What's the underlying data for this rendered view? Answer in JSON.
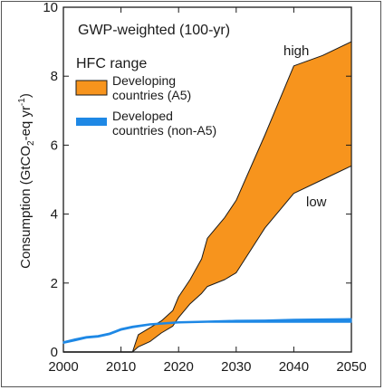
{
  "chart_data": {
    "type": "area",
    "title": "GWP-weighted (100-yr)",
    "ylabel_parts": [
      "Consumption (GtCO",
      "2",
      "-eq yr",
      "-1",
      ")"
    ],
    "xlim": [
      2000,
      2050
    ],
    "ylim": [
      0,
      10
    ],
    "x_ticks": [
      2000,
      2010,
      2020,
      2030,
      2040,
      2050
    ],
    "y_ticks": [
      0,
      2,
      4,
      6,
      8,
      10
    ],
    "legend": {
      "heading": "HFC range",
      "entries": [
        {
          "lines": [
            "Developing",
            "countries (A5)"
          ],
          "color": "#f7941d"
        },
        {
          "lines": [
            "Developed",
            "countries (non-A5)"
          ],
          "color": "#1e88e5"
        }
      ]
    },
    "annotations": {
      "high": "high",
      "low": "low"
    },
    "series": [
      {
        "name": "Developing countries (A5)",
        "color": "#f7941d",
        "x": [
          2012,
          2013,
          2015,
          2017,
          2019,
          2020,
          2022,
          2024,
          2025,
          2028,
          2030,
          2035,
          2040,
          2045,
          2050
        ],
        "high": [
          0,
          0.5,
          0.7,
          0.9,
          1.2,
          1.6,
          2.1,
          2.7,
          3.3,
          3.9,
          4.4,
          6.3,
          8.3,
          8.6,
          9.0
        ],
        "low": [
          0,
          0.15,
          0.3,
          0.55,
          0.75,
          1.0,
          1.4,
          1.7,
          1.9,
          2.1,
          2.3,
          3.6,
          4.6,
          5.0,
          5.4
        ]
      },
      {
        "name": "Developed countries (non-A5)",
        "color": "#1e88e5",
        "x": [
          2000,
          2002,
          2004,
          2006,
          2008,
          2010,
          2012,
          2015,
          2020,
          2025,
          2030,
          2035,
          2040,
          2045,
          2050
        ],
        "high": [
          0.3,
          0.38,
          0.45,
          0.48,
          0.55,
          0.68,
          0.75,
          0.82,
          0.88,
          0.9,
          0.92,
          0.93,
          0.95,
          0.96,
          0.97
        ],
        "low": [
          0.25,
          0.32,
          0.4,
          0.43,
          0.5,
          0.63,
          0.7,
          0.78,
          0.84,
          0.86,
          0.86,
          0.86,
          0.86,
          0.86,
          0.86
        ]
      }
    ],
    "extras": {
      "a5_pre_period": {
        "x": [
          2000,
          2012
        ],
        "y": 0
      }
    }
  }
}
